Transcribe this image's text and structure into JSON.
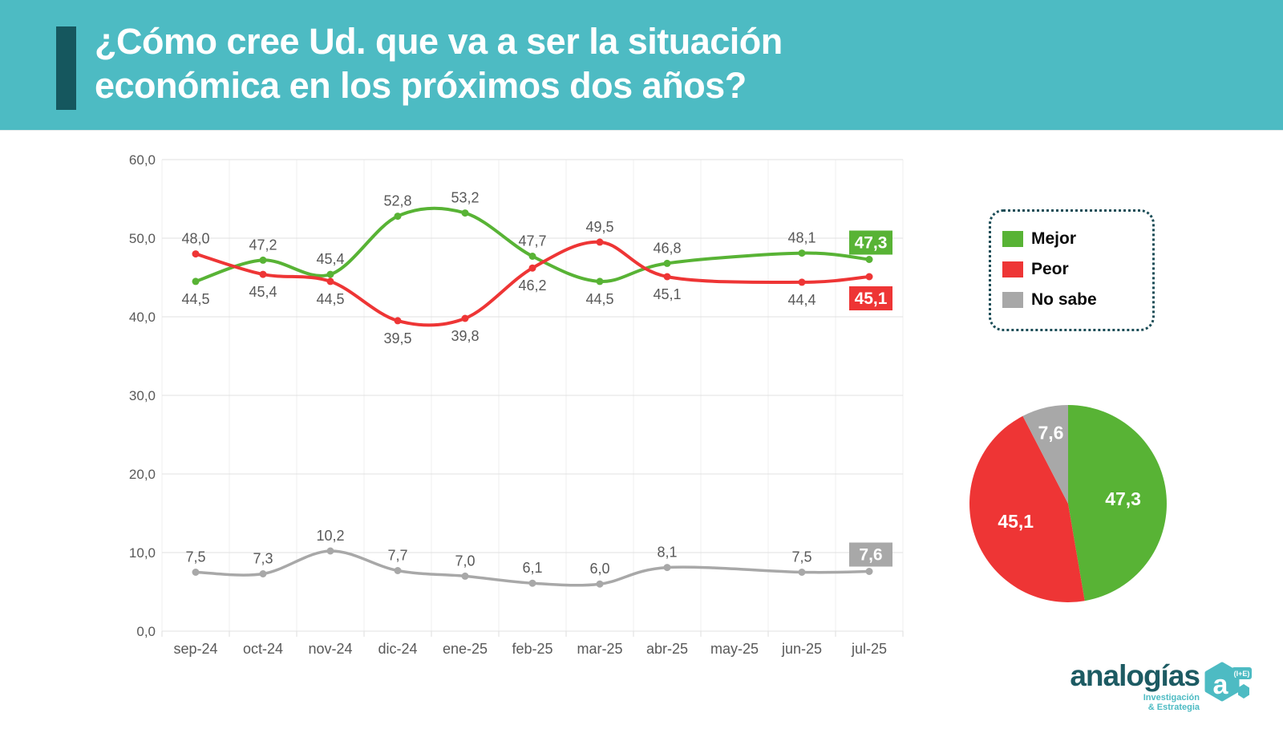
{
  "header": {
    "title_line1": "¿Cómo cree Ud. que va a ser la situación",
    "title_line2": "económica en los próximos dos años?"
  },
  "colors": {
    "header_teal": "#4DBBC3",
    "header_accent_bar": "#15575E",
    "mejor_green": "#58B335",
    "peor_red": "#EE3535",
    "no_sabe_gray": "#A8A8A8",
    "grid_line": "#E2E2E2",
    "axis_text": "#595959",
    "legend_border": "#1B4D57"
  },
  "chart_data": [
    {
      "type": "line",
      "title": "",
      "xlabel": "",
      "ylabel": "",
      "categories": [
        "sep-24",
        "oct-24",
        "nov-24",
        "dic-24",
        "ene-25",
        "feb-25",
        "mar-25",
        "abr-25",
        "may-25",
        "jun-25",
        "jul-25"
      ],
      "ylim": [
        0,
        60
      ],
      "ytick_step": 10,
      "y_tick_labels": [
        "0,0",
        "10,0",
        "20,0",
        "30,0",
        "40,0",
        "50,0",
        "60,0"
      ],
      "grid": true,
      "decimal_separator": ",",
      "legend_position": "right-box",
      "series": [
        {
          "name": "Mejor",
          "color": "#58B335",
          "values": [
            44.5,
            47.2,
            45.4,
            52.8,
            53.2,
            47.7,
            44.5,
            46.8,
            null,
            48.1,
            47.3
          ],
          "label_positions": [
            "below",
            "above",
            "above",
            "above",
            "above",
            "above",
            "below",
            "above",
            null,
            "above",
            "badge_above"
          ]
        },
        {
          "name": "Peor",
          "color": "#EE3535",
          "values": [
            48.0,
            45.4,
            44.5,
            39.5,
            39.8,
            46.2,
            49.5,
            45.1,
            null,
            44.4,
            45.1
          ],
          "label_positions": [
            "above",
            "below",
            "below",
            "below",
            "below",
            "below",
            "above",
            "below",
            null,
            "below",
            "badge_below"
          ]
        },
        {
          "name": "No sabe",
          "color": "#A8A8A8",
          "values": [
            7.5,
            7.3,
            10.2,
            7.7,
            7.0,
            6.1,
            6.0,
            8.1,
            null,
            7.5,
            7.6
          ],
          "label_positions": [
            "above",
            "above",
            "above",
            "above",
            "above",
            "above",
            "above",
            "above",
            null,
            "above",
            "badge_above"
          ]
        }
      ]
    },
    {
      "type": "pie",
      "start_angle_deg": 0,
      "direction": "clockwise",
      "slices": [
        {
          "label": "Mejor",
          "value": 47.3,
          "display": "47,3",
          "color": "#58B335"
        },
        {
          "label": "Peor",
          "value": 45.1,
          "display": "45,1",
          "color": "#EE3535"
        },
        {
          "label": "No sabe",
          "value": 7.6,
          "display": "7,6",
          "color": "#A8A8A8"
        }
      ]
    }
  ],
  "legend": {
    "items": [
      {
        "label": "Mejor",
        "color": "#58B335"
      },
      {
        "label": "Peor",
        "color": "#EE3535"
      },
      {
        "label": "No sabe",
        "color": "#A8A8A8"
      }
    ]
  },
  "logo": {
    "name": "analogías",
    "tagline_line1": "Investigación",
    "tagline_line2": "& Estrategia",
    "mark_letter": "a",
    "mark_tag": "(I+E)"
  }
}
